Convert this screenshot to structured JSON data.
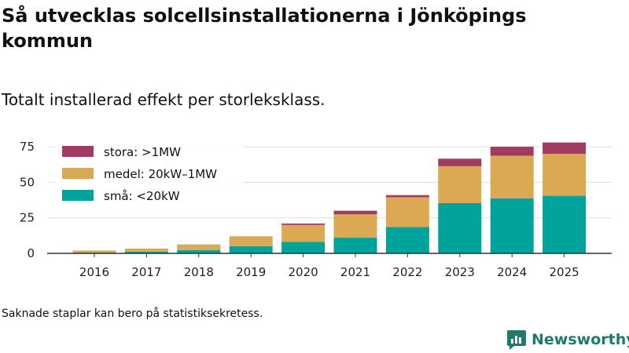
{
  "colors": {
    "stora": "#a23b62",
    "medel": "#d9a954",
    "sma": "#00a39b",
    "grid": "#dddddd",
    "axis": "#333333",
    "brand": "#1f7a6b"
  },
  "brand": {
    "name": "Newsworthy",
    "icon": "newsworthy-logo-icon"
  },
  "footnote": "Saknade staplar kan bero på statistiksekretess.",
  "chart_data": {
    "type": "bar",
    "stacked": true,
    "title": "Så utvecklas solcellsinstallationerna i Jönköpings kommun",
    "subtitle": "Totalt installerad effekt per storleksklass.",
    "xlabel": "",
    "ylabel": "",
    "ylim": [
      0,
      80
    ],
    "yticks": [
      0,
      25,
      50,
      75
    ],
    "grid": true,
    "legend_position": "top-left",
    "categories": [
      "2016",
      "2017",
      "2018",
      "2019",
      "2020",
      "2021",
      "2022",
      "2023",
      "2024",
      "2025"
    ],
    "series": [
      {
        "name": "små: <20kW",
        "key": "sma",
        "values": [
          0.5,
          1.2,
          2.3,
          5.0,
          8.0,
          11.0,
          18.5,
          35.3,
          38.7,
          40.5
        ]
      },
      {
        "name": "medel: 20kW–1MW",
        "key": "medel",
        "values": [
          1.5,
          2.2,
          4.0,
          7.0,
          12.0,
          16.5,
          21.0,
          26.0,
          30.0,
          29.5
        ]
      },
      {
        "name": "stora: >1MW",
        "key": "stora",
        "values": [
          0,
          0,
          0,
          0,
          1.0,
          2.5,
          1.5,
          5.3,
          6.3,
          8.0
        ]
      }
    ]
  }
}
